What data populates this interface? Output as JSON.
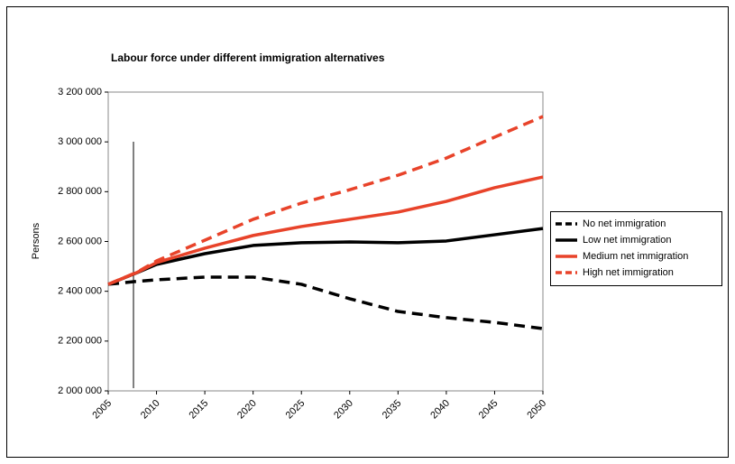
{
  "chart_data": {
    "type": "line",
    "title": "Labour force under different immigration alternatives",
    "y_label": "Persons",
    "x": [
      2005,
      2008,
      2010,
      2015,
      2020,
      2025,
      2030,
      2035,
      2040,
      2045,
      2050
    ],
    "xlim": [
      2005,
      2050
    ],
    "xticks": [
      2005,
      2010,
      2015,
      2020,
      2025,
      2030,
      2035,
      2040,
      2045,
      2050
    ],
    "ylim": [
      2000000,
      3200000
    ],
    "yticks": [
      {
        "value": 2000000,
        "label": "2 000 000"
      },
      {
        "value": 2200000,
        "label": "2 200 000"
      },
      {
        "value": 2400000,
        "label": "2 400 000"
      },
      {
        "value": 2600000,
        "label": "2 600 000"
      },
      {
        "value": 2800000,
        "label": "2 800 000"
      },
      {
        "value": 3000000,
        "label": "3 000 000"
      },
      {
        "value": 3200000,
        "label": "3 200 000"
      }
    ],
    "legend": "right",
    "series": [
      {
        "name": "No net immigration",
        "color": "#000000",
        "style": "dashed",
        "values": [
          2428000,
          2440000,
          2446000,
          2457000,
          2457000,
          2428000,
          2370000,
          2319000,
          2294000,
          2275000,
          2250000
        ]
      },
      {
        "name": "Low net immigration",
        "color": "#000000",
        "style": "solid",
        "values": [
          2428000,
          2475000,
          2508000,
          2551000,
          2584000,
          2595000,
          2598000,
          2595000,
          2602000,
          2627000,
          2652000
        ]
      },
      {
        "name": "Medium net immigration",
        "color": "#e8432a",
        "style": "solid",
        "values": [
          2428000,
          2476000,
          2515000,
          2573000,
          2624000,
          2660000,
          2689000,
          2718000,
          2761000,
          2816000,
          2859000
        ]
      },
      {
        "name": "High net immigration",
        "color": "#e8432a",
        "style": "dashed",
        "values": [
          2428000,
          2477000,
          2522000,
          2605000,
          2689000,
          2754000,
          2808000,
          2866000,
          2935000,
          3019000,
          3102000
        ]
      }
    ]
  }
}
